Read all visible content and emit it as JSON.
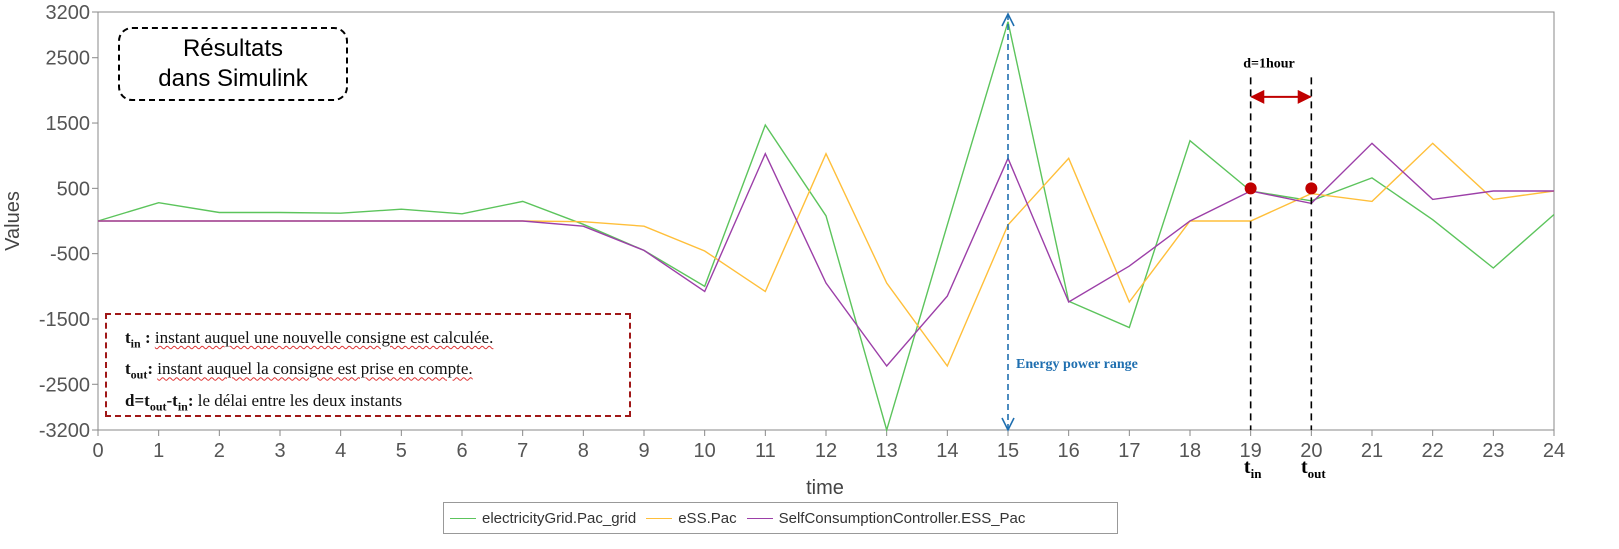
{
  "chart_data": {
    "type": "line",
    "xlabel": "time",
    "ylabel": "Values",
    "xlim": [
      0,
      24
    ],
    "ylim": [
      -3200,
      3200
    ],
    "x_ticks": [
      "0",
      "1",
      "2",
      "3",
      "4",
      "5",
      "6",
      "7",
      "8",
      "9",
      "10",
      "11",
      "12",
      "13",
      "14",
      "15",
      "16",
      "17",
      "18",
      "19",
      "20",
      "21",
      "22",
      "23",
      "24"
    ],
    "y_ticks": [
      {
        "value": 3200,
        "label": "3200"
      },
      {
        "value": 2500,
        "label": "2500"
      },
      {
        "value": 1500,
        "label": "1500"
      },
      {
        "value": 500,
        "label": "500"
      },
      {
        "value": -500,
        "label": "-500"
      },
      {
        "value": -1500,
        "label": "-1500"
      },
      {
        "value": -2500,
        "label": "-2500"
      },
      {
        "value": -3200,
        "label": "-3200"
      }
    ],
    "x": [
      0,
      1,
      2,
      3,
      4,
      5,
      6,
      7,
      8,
      9,
      10,
      11,
      12,
      13,
      14,
      15,
      16,
      17,
      18,
      19,
      20,
      21,
      22,
      23,
      24
    ],
    "series": [
      {
        "name": "electricityGrid.Pac_grid",
        "color": "#5cc45c",
        "values": [
          0,
          280,
          130,
          130,
          120,
          180,
          110,
          300,
          -50,
          -450,
          -1000,
          1470,
          80,
          -3200,
          -60,
          3050,
          -1230,
          -1630,
          1230,
          460,
          310,
          660,
          20,
          -720,
          100
        ]
      },
      {
        "name": "eSS.Pac",
        "color": "#ffbf3a",
        "values": [
          0,
          0,
          0,
          0,
          0,
          0,
          0,
          0,
          -10,
          -80,
          -460,
          -1080,
          1030,
          -950,
          -2220,
          -60,
          960,
          -1240,
          0,
          0,
          420,
          300,
          1190,
          330,
          460
        ]
      },
      {
        "name": "SelfConsumptionController.ESS_Pac",
        "color": "#9c3fa8",
        "values": [
          0,
          0,
          0,
          0,
          0,
          0,
          0,
          0,
          -80,
          -450,
          -1080,
          1030,
          -950,
          -2220,
          -1150,
          960,
          -1240,
          -690,
          0,
          460,
          270,
          1190,
          330,
          460,
          460
        ]
      }
    ],
    "grid": false,
    "legend_position": "bottom-center"
  },
  "annotations": {
    "results_box": [
      "Résultats",
      "dans Simulink"
    ],
    "energy_range_label": "Energy power range",
    "delay_label": "d=1hour",
    "t_in": {
      "base": "t",
      "sub": "in"
    },
    "t_out": {
      "base": "t",
      "sub": "out"
    },
    "definitions": [
      {
        "term": "t",
        "sub": "in",
        "sep": " : ",
        "text": "instant auquel une nouvelle consigne est calculée."
      },
      {
        "term": "t",
        "sub": "out",
        "sep": ": ",
        "text": "instant auquel la consigne est prise en compte."
      },
      {
        "term": "d=t",
        "sub": "out",
        "mid": "-t",
        "sub2": "in",
        "sep": ": ",
        "text": "le délai entre les deux instants"
      }
    ]
  },
  "colors": {
    "energy_arrow": "#1f6fb0",
    "delay_arrow": "#c00000",
    "marker": "#c00000",
    "axis": "#888888"
  }
}
